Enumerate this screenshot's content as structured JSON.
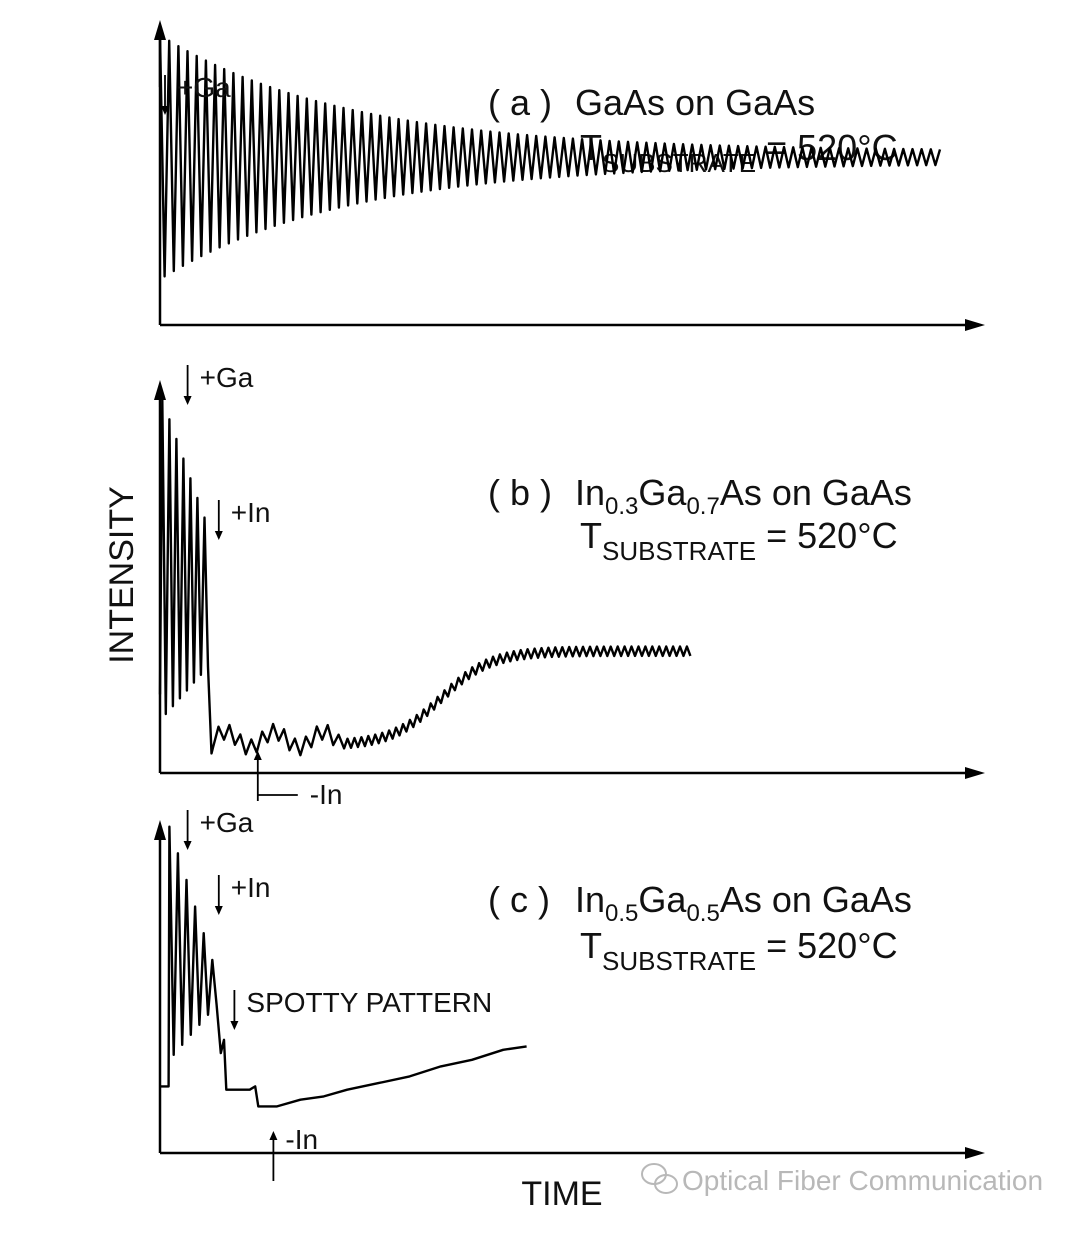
{
  "chart_data": [
    {
      "type": "line",
      "panel_label": "( a )",
      "title_main": "GaAs on GaAs",
      "title_parts": [],
      "temp_T": "T",
      "temp_sub": "SUBSTRATE",
      "temp_value": "= 520°C",
      "annotations": [
        {
          "text": "+Ga",
          "arrow": "down",
          "x": 0
        }
      ],
      "series": [
        {
          "kind": "damped_oscillation",
          "x_end": 100,
          "periods": 85,
          "base": 0.55,
          "amp_start": 0.4,
          "amp_end": 0.02
        }
      ]
    },
    {
      "type": "line",
      "panel_label": "( b )",
      "title_main": "",
      "title_parts": [
        {
          "text": "In",
          "sub": false
        },
        {
          "text": "0.3",
          "sub": true
        },
        {
          "text": "Ga",
          "sub": false
        },
        {
          "text": "0.7",
          "sub": true
        },
        {
          "text": "As on GaAs",
          "sub": false
        }
      ],
      "temp_T": "T",
      "temp_sub": "SUBSTRATE",
      "temp_value": "= 520°C",
      "annotations": [
        {
          "text": "+Ga",
          "arrow": "down",
          "x": 2
        },
        {
          "text": "+In",
          "arrow": "down",
          "x": 6
        },
        {
          "text": "-In",
          "arrow": "up",
          "x": 11
        }
      ],
      "series": [
        {
          "kind": "recovery",
          "x_end": 68
        }
      ]
    },
    {
      "type": "line",
      "panel_label": "( c )",
      "title_main": "",
      "title_parts": [
        {
          "text": "In",
          "sub": false
        },
        {
          "text": "0.5",
          "sub": true
        },
        {
          "text": "Ga",
          "sub": false
        },
        {
          "text": "0.5",
          "sub": true
        },
        {
          "text": "As on GaAs",
          "sub": false
        }
      ],
      "temp_T": "T",
      "temp_sub": "SUBSTRATE",
      "temp_value": "= 520°C",
      "annotations": [
        {
          "text": "+Ga",
          "arrow": "down",
          "x": 2
        },
        {
          "text": "+In",
          "arrow": "down",
          "x": 6
        },
        {
          "text": "SPOTTY PATTERN",
          "arrow": "down",
          "x": 8
        },
        {
          "text": "-In",
          "arrow": "up",
          "x": 13
        }
      ],
      "series": [
        {
          "kind": "spotty",
          "x_end": 47
        }
      ]
    }
  ],
  "axes": {
    "ylabel": "INTENSITY",
    "xlabel": "TIME"
  },
  "watermark": {
    "text": "Optical Fiber Communication",
    "icon": "wechat-icon"
  }
}
